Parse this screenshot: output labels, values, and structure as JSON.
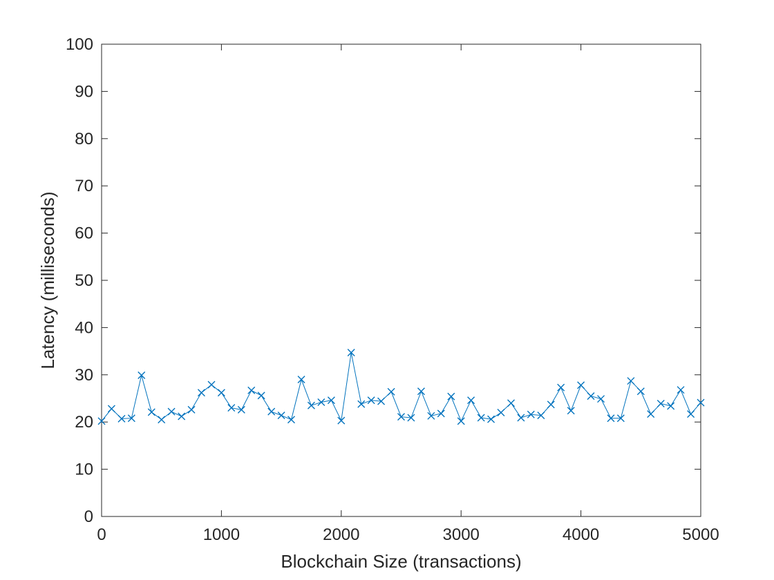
{
  "chart_data": {
    "type": "line",
    "title": "",
    "xlabel": "Blockchain Size (transactions)",
    "ylabel": "Latency (milliseconds)",
    "xlim": [
      0,
      5000
    ],
    "ylim": [
      0,
      100
    ],
    "xticks": [
      0,
      1000,
      2000,
      3000,
      4000,
      5000
    ],
    "yticks": [
      0,
      10,
      20,
      30,
      40,
      50,
      60,
      70,
      80,
      90,
      100
    ],
    "grid": false,
    "marker": "x",
    "line_color": "#0072BD",
    "series": [
      {
        "x": [
          0,
          83,
          167,
          250,
          333,
          417,
          500,
          583,
          667,
          750,
          833,
          917,
          1000,
          1083,
          1167,
          1250,
          1333,
          1417,
          1500,
          1583,
          1667,
          1750,
          1833,
          1917,
          2000,
          2083,
          2167,
          2250,
          2333,
          2417,
          2500,
          2583,
          2667,
          2750,
          2833,
          2917,
          3000,
          3083,
          3167,
          3250,
          3333,
          3417,
          3500,
          3583,
          3667,
          3750,
          3833,
          3917,
          4000,
          4083,
          4167,
          4250,
          4333,
          4417,
          4500,
          4583,
          4667,
          4750,
          4833,
          4917,
          5000
        ],
        "values": [
          20.2,
          22.8,
          20.7,
          20.8,
          29.9,
          22.1,
          20.5,
          22.2,
          21.2,
          22.6,
          26.2,
          27.9,
          26.2,
          23.0,
          22.6,
          26.7,
          25.6,
          22.2,
          21.4,
          20.5,
          29.0,
          23.5,
          24.2,
          24.6,
          20.3,
          34.7,
          23.8,
          24.6,
          24.4,
          26.4,
          21.1,
          20.9,
          26.5,
          21.3,
          21.8,
          25.4,
          20.2,
          24.6,
          20.9,
          20.6,
          22.0,
          24.0,
          20.9,
          21.6,
          21.4,
          23.7,
          27.3,
          22.4,
          27.8,
          25.5,
          24.9,
          20.8,
          20.8,
          28.7,
          26.5,
          21.7,
          23.9,
          23.4,
          26.8,
          21.7,
          24.1
        ]
      }
    ]
  }
}
